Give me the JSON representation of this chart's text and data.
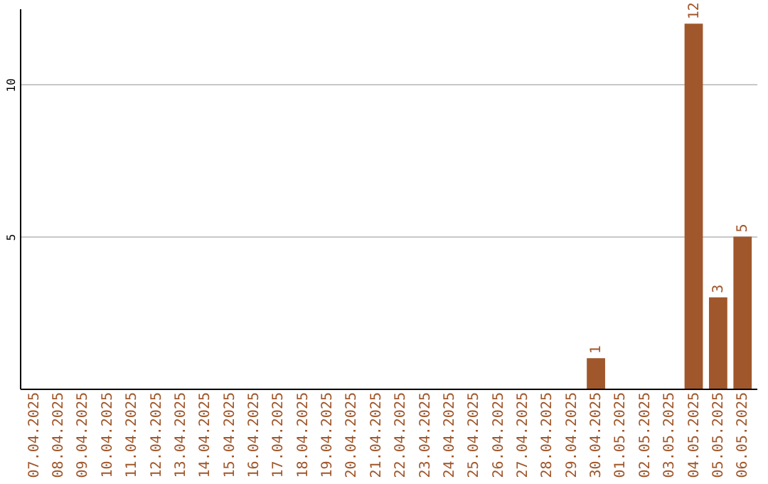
{
  "chart_data": {
    "type": "bar",
    "categories": [
      "07.04.2025",
      "08.04.2025",
      "09.04.2025",
      "10.04.2025",
      "11.04.2025",
      "12.04.2025",
      "13.04.2025",
      "14.04.2025",
      "15.04.2025",
      "16.04.2025",
      "17.04.2025",
      "18.04.2025",
      "19.04.2025",
      "20.04.2025",
      "21.04.2025",
      "22.04.2025",
      "23.04.2025",
      "24.04.2025",
      "25.04.2025",
      "26.04.2025",
      "27.04.2025",
      "28.04.2025",
      "29.04.2025",
      "30.04.2025",
      "01.05.2025",
      "02.05.2025",
      "03.05.2025",
      "04.05.2025",
      "05.05.2025",
      "06.05.2025"
    ],
    "values": [
      0,
      0,
      0,
      0,
      0,
      0,
      0,
      0,
      0,
      0,
      0,
      0,
      0,
      0,
      0,
      0,
      0,
      0,
      0,
      0,
      0,
      0,
      0,
      1,
      0,
      0,
      0,
      12,
      3,
      5
    ],
    "value_labels": [
      null,
      null,
      null,
      null,
      null,
      null,
      null,
      null,
      null,
      null,
      null,
      null,
      null,
      null,
      null,
      null,
      null,
      null,
      null,
      null,
      null,
      null,
      null,
      "1",
      null,
      null,
      null,
      "12",
      "3",
      "5"
    ],
    "color": "#a0572b",
    "ylim": [
      0,
      12.5
    ],
    "yticks": [
      5,
      10
    ],
    "grid": "y"
  }
}
